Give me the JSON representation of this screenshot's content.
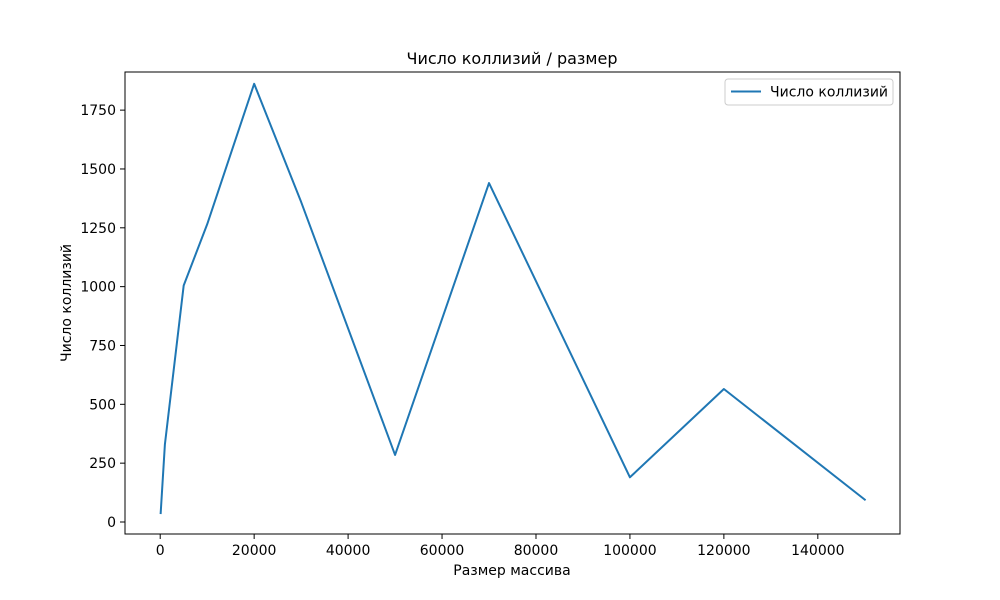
{
  "chart_data": {
    "type": "line",
    "title": "Число коллизий / размер",
    "xlabel": "Размер массива",
    "ylabel": "Число коллизий",
    "xlim": [
      -7495,
      157495
    ],
    "ylim": [
      -51,
      1912
    ],
    "xticks": [
      0,
      20000,
      40000,
      60000,
      80000,
      100000,
      120000,
      140000
    ],
    "yticks": [
      0,
      250,
      500,
      750,
      1000,
      1250,
      1500,
      1750
    ],
    "grid": false,
    "legend_position": "upper right",
    "series": [
      {
        "name": "Число коллизий",
        "color": "#1f77b4",
        "x": [
          100,
          1000,
          5000,
          10000,
          20000,
          30000,
          50000,
          70000,
          100000,
          120000,
          150000
        ],
        "y": [
          38,
          330,
          1005,
          1265,
          1862,
          1360,
          285,
          1440,
          190,
          565,
          95
        ]
      }
    ]
  }
}
